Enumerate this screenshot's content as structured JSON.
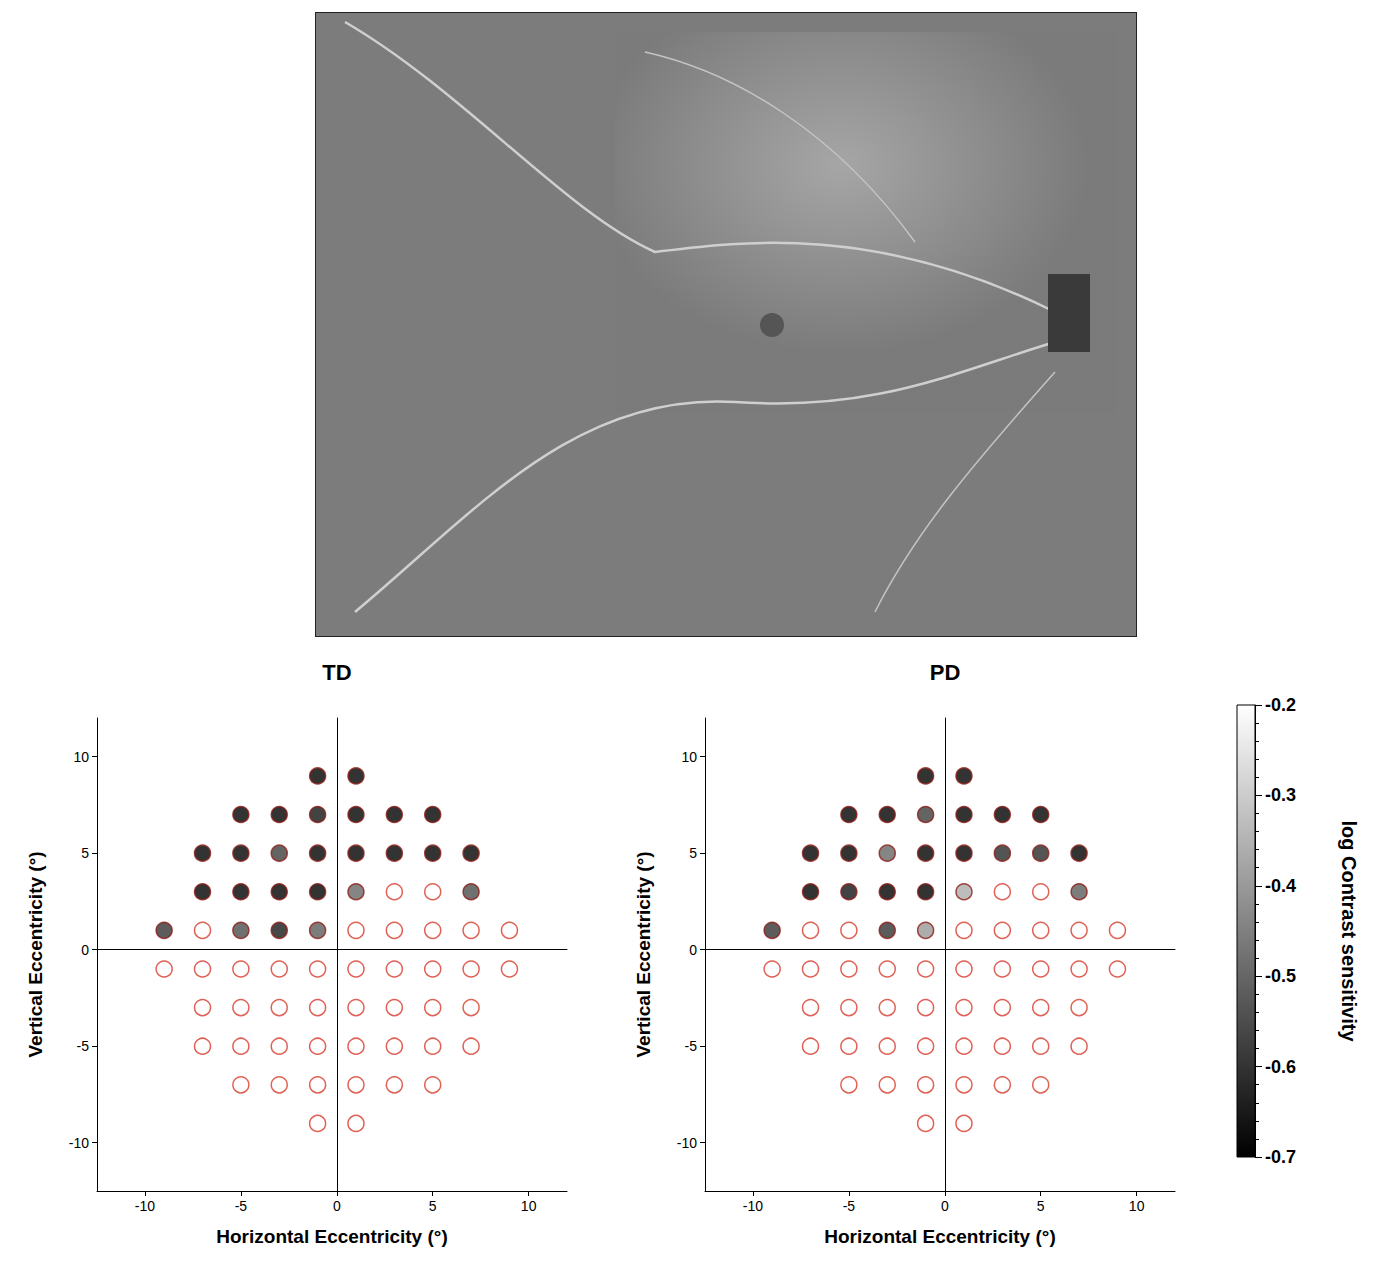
{
  "chart_data": [
    {
      "type": "scatter",
      "title": "TD",
      "x_label": "Horizontal Eccentricity (°)",
      "y_label": "Vertical Eccentricity (°)",
      "xlim": [
        -12.5,
        12
      ],
      "ylim": [
        -12.5,
        12
      ],
      "xticks": [
        -10,
        -5,
        0,
        5,
        10
      ],
      "yticks": [
        -10,
        -5,
        0,
        5,
        10
      ],
      "grid": false,
      "marker": "circle",
      "x": [
        -1,
        1,
        -5,
        -3,
        -1,
        1,
        3,
        5,
        -7,
        -5,
        -3,
        -1,
        1,
        3,
        5,
        7,
        -7,
        -5,
        -3,
        -1,
        1,
        3,
        5,
        7,
        -9,
        -7,
        -5,
        -3,
        -1,
        1,
        3,
        5,
        7,
        9,
        -9,
        -7,
        -5,
        -3,
        -1,
        1,
        3,
        5,
        7,
        9,
        -7,
        -5,
        -3,
        -1,
        1,
        3,
        5,
        7,
        -7,
        -5,
        -3,
        -1,
        1,
        3,
        5,
        7,
        -5,
        -3,
        -1,
        1,
        3,
        5,
        -1,
        1
      ],
      "y": [
        9,
        9,
        7,
        7,
        7,
        7,
        7,
        7,
        5,
        5,
        5,
        5,
        5,
        5,
        5,
        5,
        3,
        3,
        3,
        3,
        3,
        3,
        3,
        3,
        1,
        1,
        1,
        1,
        1,
        1,
        1,
        1,
        1,
        1,
        -1,
        -1,
        -1,
        -1,
        -1,
        -1,
        -1,
        -1,
        -1,
        -1,
        -3,
        -3,
        -3,
        -3,
        -3,
        -3,
        -3,
        -3,
        -5,
        -5,
        -5,
        -5,
        -5,
        -5,
        -5,
        -5,
        -7,
        -7,
        -7,
        -7,
        -7,
        -7,
        -9,
        -9
      ],
      "values": [
        -0.7,
        -0.7,
        -0.7,
        -0.7,
        -0.66,
        -0.7,
        -0.7,
        -0.7,
        -0.7,
        -0.7,
        -0.58,
        -0.7,
        -0.7,
        -0.7,
        -0.7,
        -0.7,
        -0.7,
        -0.7,
        -0.7,
        -0.7,
        -0.5,
        null,
        null,
        -0.55,
        -0.6,
        null,
        -0.55,
        -0.65,
        -0.52,
        null,
        null,
        null,
        null,
        null,
        null,
        null,
        null,
        null,
        null,
        null,
        null,
        null,
        null,
        null,
        null,
        null,
        null,
        null,
        null,
        null,
        null,
        null,
        null,
        null,
        null,
        null,
        null,
        null,
        null,
        null,
        null,
        null,
        null,
        null,
        null,
        null,
        null,
        null
      ]
    },
    {
      "type": "scatter",
      "title": "PD",
      "x_label": "Horizontal Eccentricity (°)",
      "y_label": "Vertical Eccentricity (°)",
      "xlim": [
        -12.5,
        12
      ],
      "ylim": [
        -12.5,
        12
      ],
      "xticks": [
        -10,
        -5,
        0,
        5,
        10
      ],
      "yticks": [
        -10,
        -5,
        0,
        5,
        10
      ],
      "grid": false,
      "marker": "circle",
      "x": [
        -1,
        1,
        -5,
        -3,
        -1,
        1,
        3,
        5,
        -7,
        -5,
        -3,
        -1,
        1,
        3,
        5,
        7,
        -7,
        -5,
        -3,
        -1,
        1,
        3,
        5,
        7,
        -9,
        -7,
        -5,
        -3,
        -1,
        1,
        3,
        5,
        7,
        9,
        -9,
        -7,
        -5,
        -3,
        -1,
        1,
        3,
        5,
        7,
        9,
        -7,
        -5,
        -3,
        -1,
        1,
        3,
        5,
        7,
        -7,
        -5,
        -3,
        -1,
        1,
        3,
        5,
        7,
        -5,
        -3,
        -1,
        1,
        3,
        5,
        -1,
        1
      ],
      "y": [
        9,
        9,
        7,
        7,
        7,
        7,
        7,
        7,
        5,
        5,
        5,
        5,
        5,
        5,
        5,
        5,
        3,
        3,
        3,
        3,
        3,
        3,
        3,
        3,
        1,
        1,
        1,
        1,
        1,
        1,
        1,
        1,
        1,
        1,
        -1,
        -1,
        -1,
        -1,
        -1,
        -1,
        -1,
        -1,
        -1,
        -1,
        -3,
        -3,
        -3,
        -3,
        -3,
        -3,
        -3,
        -3,
        -5,
        -5,
        -5,
        -5,
        -5,
        -5,
        -5,
        -5,
        -7,
        -7,
        -7,
        -7,
        -7,
        -7,
        -9,
        -9
      ],
      "values": [
        -0.7,
        -0.7,
        -0.7,
        -0.7,
        -0.58,
        -0.7,
        -0.7,
        -0.7,
        -0.7,
        -0.7,
        -0.5,
        -0.7,
        -0.7,
        -0.62,
        -0.62,
        -0.7,
        -0.7,
        -0.66,
        -0.7,
        -0.7,
        -0.36,
        null,
        null,
        -0.52,
        -0.6,
        null,
        null,
        -0.6,
        -0.4,
        null,
        null,
        null,
        null,
        null,
        null,
        null,
        null,
        null,
        null,
        null,
        null,
        null,
        null,
        null,
        null,
        null,
        null,
        null,
        null,
        null,
        null,
        null,
        null,
        null,
        null,
        null,
        null,
        null,
        null,
        null,
        null,
        null,
        null,
        null,
        null,
        null,
        null,
        null
      ]
    }
  ],
  "colorbar": {
    "label": "log Contrast sensitivity",
    "range": [
      -0.7,
      -0.2
    ],
    "ticks": [
      -0.7,
      -0.6,
      -0.5,
      -0.4,
      -0.3,
      -0.2
    ],
    "colors": [
      "#000000",
      "#ffffff"
    ]
  }
}
